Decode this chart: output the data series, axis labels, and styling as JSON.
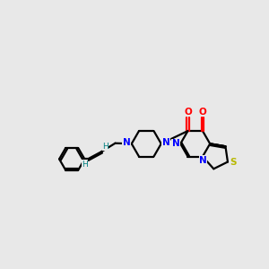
{
  "bg": "#e8e8e8",
  "lc": "#000000",
  "nc": "#0000ff",
  "oc": "#ff0000",
  "sc": "#b8b800",
  "hc": "#008080",
  "lw": 1.6,
  "dbo": 0.055,
  "xlim": [
    0.0,
    10.0
  ],
  "ylim": [
    3.0,
    8.0
  ]
}
